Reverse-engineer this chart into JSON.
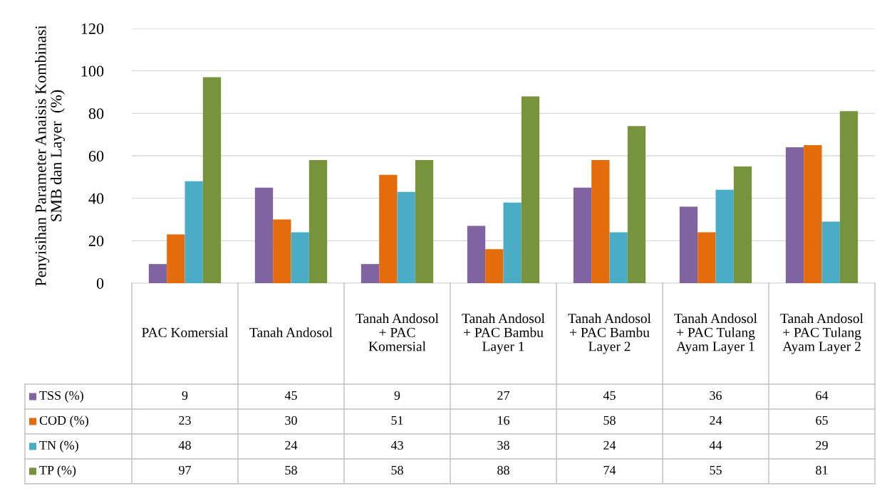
{
  "chart_data": {
    "type": "bar",
    "ylabel": "Penyisihan Parameter Anaisis Kombinasi SMB dan Layer  (%)",
    "categories": [
      "PAC Komersial",
      "Tanah Andosol",
      "Tanah Andosol + PAC Komersial",
      "Tanah Andosol + PAC Bambu Layer 1",
      "Tanah Andosol + PAC Bambu Layer 2",
      "Tanah Andosol + PAC Tulang Ayam Layer 1",
      "Tanah Andosol + PAC Tulang Ayam Layer 2"
    ],
    "series": [
      {
        "name": "TSS (%)",
        "color": "#8064a2",
        "values": [
          9,
          45,
          9,
          27,
          45,
          36,
          64
        ]
      },
      {
        "name": "COD (%)",
        "color": "#e46c0a",
        "values": [
          23,
          30,
          51,
          16,
          58,
          24,
          65
        ]
      },
      {
        "name": "TN (%)",
        "color": "#4bacc6",
        "values": [
          48,
          24,
          43,
          38,
          24,
          44,
          29
        ]
      },
      {
        "name": "TP (%)",
        "color": "#77933c",
        "values": [
          97,
          58,
          58,
          88,
          74,
          55,
          81
        ]
      }
    ],
    "ylim": [
      0,
      120
    ],
    "yticks": [
      0,
      20,
      40,
      60,
      80,
      100,
      120
    ],
    "grid": "y",
    "legend": "bottom",
    "data_labels": true
  }
}
